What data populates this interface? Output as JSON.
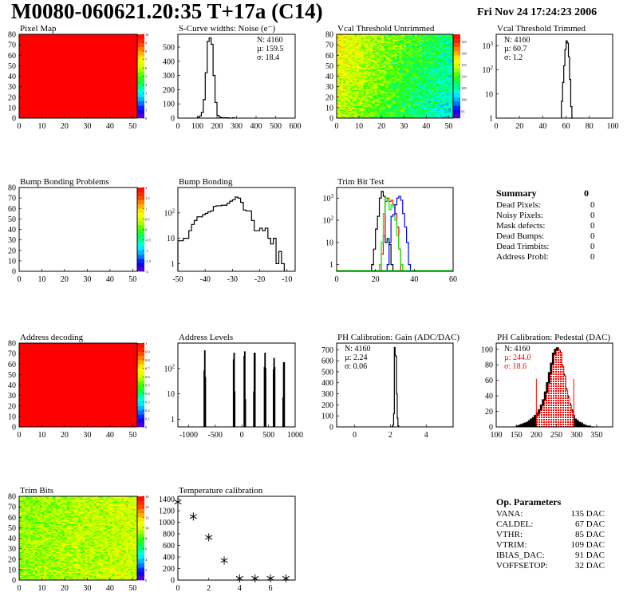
{
  "header": {
    "title": "M0080-060621.20:35 T+17a (C14)",
    "date": "Fri Nov 24 17:24:23 2006"
  },
  "colors": {
    "palette": [
      "#6600cc",
      "#0000ff",
      "#0099ff",
      "#00ffff",
      "#00ff66",
      "#33ff00",
      "#ccff00",
      "#ffff00",
      "#ff9900",
      "#ff3300",
      "#ff0000"
    ],
    "trim_series": [
      "#000000",
      "#ff0000",
      "#00ee00",
      "#0000ff"
    ],
    "pedestal_fill": "#ff0000"
  },
  "chart_data": [
    {
      "id": "pixel-map",
      "type": "heatmap",
      "title": "Pixel Map",
      "xlim": [
        0,
        52
      ],
      "ylim": [
        0,
        80
      ],
      "xticks": [
        0,
        10,
        20,
        30,
        40,
        50
      ],
      "yticks": [
        0,
        10,
        20,
        30,
        40,
        50,
        60,
        70,
        80
      ],
      "zlim": [
        0,
        10
      ],
      "zticks": [
        "0",
        "1",
        "2",
        "3",
        "4",
        "5",
        "6",
        "7",
        "8",
        "9",
        "10"
      ],
      "uniform_value": 10
    },
    {
      "id": "s-curve-noise",
      "type": "bar",
      "title": "S-Curve widths: Noise (e⁻)",
      "xlim": [
        0,
        600
      ],
      "ylim": [
        0,
        590
      ],
      "xticks": [
        0,
        100,
        200,
        300,
        400,
        500,
        600
      ],
      "yticks": [
        0,
        100,
        200,
        300,
        400,
        500
      ],
      "x_start": 100,
      "bin_width": 10,
      "values": [
        5,
        15,
        40,
        130,
        320,
        540,
        565,
        520,
        300,
        110,
        20,
        8,
        3,
        3,
        2,
        2,
        0,
        0,
        2
      ],
      "stats": {
        "N": "N: 4160",
        "mu": "µ: 159.5",
        "sigma": "σ: 18.4"
      }
    },
    {
      "id": "vcal-untrimmed",
      "type": "heatmap",
      "title": "Vcal Threshold Untrimmed",
      "xlim": [
        0,
        52
      ],
      "ylim": [
        0,
        80
      ],
      "xticks": [
        0,
        10,
        20,
        30,
        40,
        50
      ],
      "yticks": [
        0,
        10,
        20,
        30,
        40,
        50,
        60,
        70,
        80
      ],
      "zlim": [
        92,
        128
      ],
      "zticks": [
        "95",
        "100",
        "105",
        "110",
        "115",
        "120",
        "125"
      ],
      "typical_value": 108
    },
    {
      "id": "vcal-trimmed",
      "type": "bar",
      "title": "Vcal Threshold Trimmed",
      "log_y": true,
      "xlim": [
        0,
        100
      ],
      "ylim": [
        1,
        3000
      ],
      "xticks": [
        0,
        20,
        40,
        60,
        80,
        100
      ],
      "yticks": [
        1,
        10,
        100,
        1000
      ],
      "x_start": 56,
      "bin_width": 1,
      "values": [
        5,
        30,
        150,
        700,
        1600,
        1300,
        350,
        40,
        3,
        1
      ],
      "stats": {
        "N": "N: 4160",
        "mu": "µ: 60.7",
        "sigma": "σ:  1.2"
      }
    },
    {
      "id": "bump-bonding-problems",
      "type": "heatmap",
      "title": "Bump Bonding Problems",
      "xlim": [
        0,
        52
      ],
      "ylim": [
        0,
        80
      ],
      "xticks": [
        0,
        10,
        20,
        30,
        40,
        50
      ],
      "yticks": [
        0,
        10,
        20,
        30,
        40,
        50,
        60,
        70,
        80
      ],
      "zlim": [
        -2,
        2
      ],
      "zticks": [
        "-2",
        "-1.5",
        "-1",
        "-0.5",
        "0",
        "0.5",
        "1",
        "1.5",
        "2"
      ],
      "empty": true
    },
    {
      "id": "bump-bonding",
      "type": "bar",
      "title": "Bump Bonding",
      "log_y": true,
      "xlim": [
        -50,
        -7
      ],
      "ylim": [
        0.5,
        1000
      ],
      "xticks": [
        -50,
        -40,
        -30,
        -20,
        -10
      ],
      "yticks": [
        1,
        10,
        100
      ],
      "x_start": -50,
      "bin_width": 1,
      "values": [
        8,
        8,
        10,
        10,
        20,
        35,
        50,
        70,
        70,
        85,
        95,
        110,
        120,
        180,
        190,
        190,
        200,
        200,
        240,
        290,
        330,
        420,
        380,
        260,
        130,
        120,
        120,
        50,
        20,
        20,
        25,
        20,
        25,
        10,
        6,
        10,
        1,
        3,
        1
      ]
    },
    {
      "id": "trim-bit-test",
      "type": "bar",
      "title": "Trim Bit Test",
      "log_y": true,
      "xlim": [
        0,
        60
      ],
      "ylim": [
        0.5,
        3000
      ],
      "xticks": [
        0,
        20,
        40,
        60
      ],
      "yticks": [
        1,
        10,
        100,
        1000
      ],
      "series": [
        {
          "x_start": 18,
          "bin_width": 1,
          "values": [
            1,
            5,
            40,
            150,
            1000,
            2000,
            1200,
            10,
            15,
            8,
            1
          ]
        },
        {
          "x_start": 23,
          "bin_width": 1,
          "values": [
            3,
            20,
            700,
            1000,
            700,
            800,
            500,
            200,
            50,
            5
          ]
        },
        {
          "x_start": 22,
          "bin_width": 1,
          "values": [
            1,
            10,
            200,
            1000,
            800,
            300,
            500,
            400,
            100,
            20,
            5,
            1
          ]
        },
        {
          "x_start": 26,
          "bin_width": 1,
          "values": [
            1,
            10,
            150,
            180,
            500,
            1000,
            1200,
            800,
            200,
            50,
            10,
            1
          ]
        }
      ]
    },
    {
      "id": "address-decoding",
      "type": "heatmap",
      "title": "Address decoding",
      "xlim": [
        0,
        52
      ],
      "ylim": [
        0,
        80
      ],
      "xticks": [
        0,
        10,
        20,
        30,
        40,
        50
      ],
      "yticks": [
        0,
        10,
        20,
        30,
        40,
        50,
        60,
        70,
        80
      ],
      "zlim": [
        0,
        1
      ],
      "zticks": [
        "0",
        "0.1",
        "0.2",
        "0.3",
        "0.4",
        "0.5",
        "0.6",
        "0.7",
        "0.8",
        "0.9",
        "1"
      ],
      "uniform_value": 1
    },
    {
      "id": "address-levels",
      "type": "bar",
      "title": "Address Levels",
      "log_y": true,
      "xlim": [
        -1200,
        1000
      ],
      "ylim": [
        0.5,
        1000
      ],
      "xticks": [
        -1000,
        -500,
        0,
        500,
        1000
      ],
      "yticks": [
        1,
        10,
        100
      ],
      "bin_width": 10,
      "bins": [
        [
          -710,
          80
        ],
        [
          -700,
          500
        ],
        [
          -690,
          45
        ],
        [
          -160,
          220
        ],
        [
          -150,
          400
        ],
        [
          -140,
          12
        ],
        [
          40,
          300
        ],
        [
          50,
          450
        ],
        [
          60,
          6
        ],
        [
          220,
          12
        ],
        [
          230,
          400
        ],
        [
          240,
          400
        ],
        [
          420,
          110
        ],
        [
          430,
          400
        ],
        [
          440,
          100
        ],
        [
          590,
          90
        ],
        [
          600,
          250
        ],
        [
          610,
          110
        ],
        [
          770,
          7
        ],
        [
          780,
          170
        ],
        [
          790,
          170
        ]
      ]
    },
    {
      "id": "ph-gain",
      "type": "bar",
      "title": "PH Calibration: Gain (ADC/DAC)",
      "xlim": [
        -1,
        5.5
      ],
      "ylim": [
        0,
        760
      ],
      "xticks": [
        0,
        2,
        4
      ],
      "yticks": [
        0,
        100,
        200,
        300,
        400,
        500,
        600,
        700
      ],
      "x_start": 2.1,
      "bin_width": 0.04,
      "values": [
        5,
        20,
        120,
        720,
        650,
        640,
        300,
        80,
        10
      ],
      "stats": {
        "N": "N: 4160",
        "mu": "µ: 2.24",
        "sigma": "σ: 0.06"
      }
    },
    {
      "id": "ph-pedestal",
      "type": "bar",
      "title": "PH Calibration: Pedestal (DAC)",
      "xlim": [
        100,
        390
      ],
      "ylim": [
        0,
        108
      ],
      "xticks": [
        100,
        150,
        200,
        250,
        300,
        350
      ],
      "yticks": [
        0,
        20,
        40,
        60,
        80,
        100
      ],
      "x_start": 150,
      "bin_width": 5,
      "values": [
        1,
        2,
        3,
        4,
        5,
        6,
        8,
        10,
        12,
        15,
        18,
        22,
        28,
        35,
        45,
        57,
        70,
        82,
        95,
        100,
        102,
        98,
        80,
        68,
        50,
        40,
        30,
        22,
        15,
        10,
        8,
        6,
        5,
        3,
        2,
        1,
        1,
        0,
        0
      ],
      "fit_range": [
        200,
        293
      ],
      "fit_values": [
        14,
        17,
        21,
        27,
        34,
        44,
        56,
        68,
        80,
        93,
        98,
        100,
        96,
        78,
        66,
        48,
        38,
        28,
        20
      ],
      "fit_line_height": 62,
      "stats": {
        "N": "N: 4160",
        "mu": "µ: 244.0",
        "sigma": "σ: 18.6"
      }
    },
    {
      "id": "trim-bits",
      "type": "heatmap",
      "title": "Trim Bits",
      "xlim": [
        0,
        52
      ],
      "ylim": [
        0,
        80
      ],
      "xticks": [
        0,
        10,
        20,
        30,
        40,
        50
      ],
      "yticks": [
        0,
        10,
        20,
        30,
        40,
        50,
        60,
        70,
        80
      ],
      "zlim": [
        0,
        16
      ],
      "zticks": [
        "0",
        "2",
        "4",
        "6",
        "8",
        "10",
        "12",
        "14",
        "16"
      ],
      "typical_value": 9
    },
    {
      "id": "temperature-calibration",
      "type": "scatter",
      "title": "Temperature calibration",
      "xlim": [
        0,
        7.6
      ],
      "ylim": [
        0,
        1450
      ],
      "xticks": [
        0,
        2,
        4,
        6
      ],
      "yticks": [
        0,
        200,
        400,
        600,
        800,
        1000,
        1200,
        1400
      ],
      "x": [
        0,
        1,
        2,
        3,
        4,
        5,
        6,
        7
      ],
      "y": [
        1350,
        1100,
        740,
        340,
        30,
        30,
        30,
        30
      ]
    }
  ],
  "summary": {
    "title": "Summary",
    "total": "0",
    "items": [
      {
        "label": "Dead Pixels:",
        "value": "0"
      },
      {
        "label": "Noisy Pixels:",
        "value": "0"
      },
      {
        "label": "Mask defects:",
        "value": "0"
      },
      {
        "label": "Dead Bumps:",
        "value": "0"
      },
      {
        "label": "Dead Trimbits:",
        "value": "0"
      },
      {
        "label": "Address Probl:",
        "value": "0"
      }
    ]
  },
  "op_parameters": {
    "title": "Op. Parameters",
    "items": [
      {
        "label": "VANA:",
        "value": "135 DAC"
      },
      {
        "label": "CALDEL:",
        "value": "67 DAC"
      },
      {
        "label": "VTHR:",
        "value": "85 DAC"
      },
      {
        "label": "VTRIM:",
        "value": "109 DAC"
      },
      {
        "label": "IBIAS_DAC:",
        "value": "91 DAC"
      },
      {
        "label": "VOFFSETOP:",
        "value": "32 DAC"
      }
    ]
  }
}
